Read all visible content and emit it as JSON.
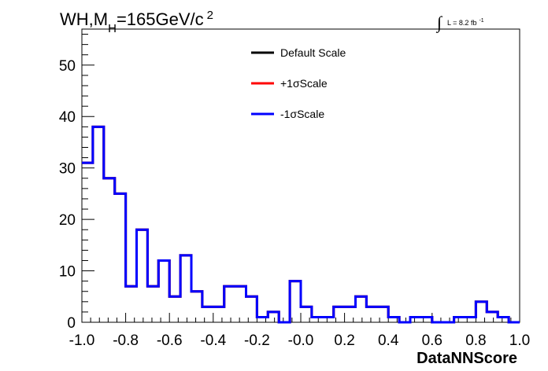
{
  "chart_data": {
    "type": "line",
    "title": {
      "prefix": "WH,M",
      "subscript": "H",
      "suffix": "=165GeV/c",
      "superscript": "2"
    },
    "lumi": {
      "integral_sign": "∫",
      "text": "L = 8.2 fb",
      "superscript": "-1"
    },
    "xlabel": "DataNNScore",
    "ylabel": "",
    "xlim": [
      -1.0,
      1.0
    ],
    "ylim": [
      0,
      57
    ],
    "x_ticks": [
      "-1.0",
      "-0.8",
      "-0.6",
      "-0.4",
      "-0.2",
      "-0.0",
      "0.2",
      "0.4",
      "0.6",
      "0.8",
      "1.0"
    ],
    "y_ticks": [
      "0",
      "10",
      "20",
      "30",
      "40",
      "50"
    ],
    "bin_edges_start": -1.0,
    "bin_width": 0.05,
    "legend_position": "top-center",
    "series": [
      {
        "name": "Default Scale",
        "color": "#000000",
        "values": [
          31,
          38,
          28,
          25,
          7,
          18,
          7,
          12,
          5,
          13,
          6,
          3,
          3,
          7,
          7,
          5,
          1,
          2,
          0,
          8,
          3,
          1,
          1,
          3,
          3,
          5,
          3,
          3,
          1,
          0,
          1,
          1,
          0,
          0,
          1,
          1,
          4,
          2,
          1,
          0
        ]
      },
      {
        "name": "+1σScale",
        "color": "#ff0000",
        "values": [
          31,
          38,
          28,
          25,
          7,
          18,
          7,
          12,
          5,
          13,
          6,
          3,
          3,
          7,
          7,
          5,
          1,
          2,
          0,
          8,
          3,
          1,
          1,
          3,
          3,
          5,
          3,
          3,
          1,
          0,
          1,
          1,
          0,
          0,
          1,
          1,
          4,
          2,
          1,
          0
        ]
      },
      {
        "name": "-1σScale",
        "color": "#0000ff",
        "values": [
          31,
          38,
          28,
          25,
          7,
          18,
          7,
          12,
          5,
          13,
          6,
          3,
          3,
          7,
          7,
          5,
          1,
          2,
          0,
          8,
          3,
          1,
          1,
          3,
          3,
          5,
          3,
          3,
          1,
          0,
          1,
          1,
          0,
          0,
          1,
          1,
          4,
          2,
          1,
          0
        ]
      }
    ]
  }
}
